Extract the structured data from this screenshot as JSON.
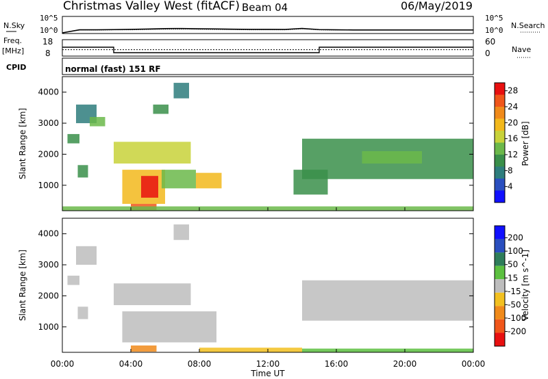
{
  "header": {
    "station": "Christmas Valley West (fitACF)",
    "beam": "Beam 04",
    "date": "06/May/2019"
  },
  "left_labels": {
    "nsky": "N.Sky",
    "freq_line1": "Freq.",
    "freq_line2": "[MHz]",
    "cpid": "CPID"
  },
  "right_labels": {
    "nsearch": "N.Search",
    "nave": "Nave"
  },
  "cpid_text": "normal (fast) 151 RF",
  "x_axis": {
    "label": "Time UT",
    "ticks": [
      "00:00",
      "04:00",
      "08:00",
      "12:00",
      "16:00",
      "20:00",
      "00:00"
    ]
  },
  "colors": {
    "power_scale": [
      "#1010ff",
      "#2a4fbf",
      "#2e7d7d",
      "#3a8f4a",
      "#6bb84a",
      "#c8d23a",
      "#f2b81c",
      "#f08a1a",
      "#f0561a",
      "#e81010"
    ],
    "velocity_scale": [
      "#1010ff",
      "#2a4fbf",
      "#2e7d5a",
      "#5cc040",
      "#bdbdbd",
      "#f2c020",
      "#f08a1a",
      "#f0561a",
      "#e81010"
    ]
  },
  "chart_data": [
    {
      "type": "line",
      "panel": "noise",
      "left_axis": {
        "label": "N.Sky",
        "ticks": [
          "10^5",
          "10^0"
        ]
      },
      "right_axis": {
        "label": "N.Search",
        "ticks": [
          "10^5",
          "10^0"
        ]
      },
      "x": [
        "00:00",
        "01:00",
        "02:00",
        "03:00",
        "04:00",
        "05:00",
        "06:00",
        "07:00",
        "08:00",
        "09:00",
        "10:00",
        "11:00",
        "12:00",
        "13:00",
        "14:00",
        "15:00",
        "16:00",
        "17:00",
        "18:00",
        "19:00",
        "20:00",
        "21:00",
        "22:00",
        "23:00",
        "24:00"
      ],
      "series": [
        {
          "name": "N.Sky",
          "values": [
            1,
            10,
            10,
            12,
            14,
            18,
            25,
            28,
            22,
            20,
            16,
            14,
            14,
            13,
            30,
            12,
            10,
            9,
            9,
            9,
            9,
            9,
            9,
            9,
            9
          ]
        },
        {
          "name": "N.Search",
          "values": [
            1,
            8,
            8,
            9,
            10,
            12,
            15,
            16,
            14,
            12,
            11,
            10,
            10,
            10,
            18,
            9,
            8,
            8,
            8,
            8,
            8,
            8,
            8,
            8,
            8
          ]
        }
      ]
    },
    {
      "type": "line",
      "panel": "frequency_nave",
      "left_axis": {
        "label": "Freq. [MHz]",
        "ticks": [
          "18",
          "8"
        ]
      },
      "right_axis": {
        "label": "Nave",
        "ticks": [
          "60",
          "0"
        ]
      },
      "x": [
        "00:00",
        "03:00",
        "03:00",
        "15:00",
        "15:00",
        "24:00"
      ],
      "series": [
        {
          "name": "Freq.",
          "values": [
            14.5,
            14.5,
            10.5,
            10.5,
            14.5,
            14.5
          ]
        },
        {
          "name": "Nave",
          "values": [
            28,
            28,
            28,
            28,
            28,
            28
          ]
        }
      ]
    },
    {
      "type": "heatmap",
      "panel": "power",
      "xlabel": "Time UT",
      "ylabel": "Slant Range [km]",
      "x_range_hours": [
        0,
        24
      ],
      "ylim": [
        180,
        4500
      ],
      "y_ticks": [
        1000,
        2000,
        3000,
        4000
      ],
      "colorbar": {
        "label": "Power [dB]",
        "ticks": [
          4,
          8,
          12,
          16,
          20,
          24,
          28
        ],
        "range": [
          0,
          30
        ]
      },
      "regions": [
        {
          "t0": 0.3,
          "t1": 1.0,
          "r0": 2350,
          "r1": 2650,
          "v": 11
        },
        {
          "t0": 0.8,
          "t1": 2.0,
          "r0": 3000,
          "r1": 3600,
          "v": 7
        },
        {
          "t0": 1.6,
          "t1": 2.5,
          "r0": 2900,
          "r1": 3200,
          "v": 14
        },
        {
          "t0": 0.9,
          "t1": 1.5,
          "r0": 1250,
          "r1": 1650,
          "v": 10
        },
        {
          "t0": 3.0,
          "t1": 7.5,
          "r0": 1700,
          "r1": 2400,
          "v": 16
        },
        {
          "t0": 3.5,
          "t1": 6.0,
          "r0": 400,
          "r1": 1500,
          "v": 20
        },
        {
          "t0": 4.6,
          "t1": 5.6,
          "r0": 600,
          "r1": 1300,
          "v": 28
        },
        {
          "t0": 4.0,
          "t1": 5.5,
          "r0": 200,
          "r1": 400,
          "v": 26
        },
        {
          "t0": 5.8,
          "t1": 7.8,
          "r0": 900,
          "r1": 1500,
          "v": 13
        },
        {
          "t0": 7.8,
          "t1": 9.3,
          "r0": 900,
          "r1": 1400,
          "v": 18
        },
        {
          "t0": 5.3,
          "t1": 6.2,
          "r0": 3300,
          "r1": 3600,
          "v": 10
        },
        {
          "t0": 6.5,
          "t1": 7.4,
          "r0": 3800,
          "r1": 4300,
          "v": 8
        },
        {
          "t0": 13.5,
          "t1": 15.5,
          "r0": 700,
          "r1": 1500,
          "v": 11
        },
        {
          "t0": 14.0,
          "t1": 24.0,
          "r0": 1200,
          "r1": 2500,
          "v": 9
        },
        {
          "t0": 17.5,
          "t1": 21.0,
          "r0": 1700,
          "r1": 2100,
          "v": 14
        },
        {
          "t0": 0.0,
          "t1": 24.0,
          "r0": 180,
          "r1": 320,
          "v": 12
        }
      ]
    },
    {
      "type": "heatmap",
      "panel": "velocity",
      "xlabel": "Time UT",
      "ylabel": "Slant Range [km]",
      "x_range_hours": [
        0,
        24
      ],
      "ylim": [
        180,
        4500
      ],
      "y_ticks": [
        1000,
        2000,
        3000,
        4000
      ],
      "colorbar": {
        "label": "Velocity [m s^-1]",
        "ticks": [
          200,
          100,
          50,
          15,
          -15,
          -50,
          -100,
          -200
        ]
      },
      "regions": [
        {
          "t0": 0.3,
          "t1": 1.0,
          "r0": 2350,
          "r1": 2650,
          "v": 0
        },
        {
          "t0": 0.8,
          "t1": 2.0,
          "r0": 3000,
          "r1": 3600,
          "v": 0
        },
        {
          "t0": 0.9,
          "t1": 1.5,
          "r0": 1250,
          "r1": 1650,
          "v": 0
        },
        {
          "t0": 3.0,
          "t1": 7.5,
          "r0": 1700,
          "r1": 2400,
          "v": 0
        },
        {
          "t0": 3.5,
          "t1": 9.0,
          "r0": 500,
          "r1": 1500,
          "v": 5
        },
        {
          "t0": 4.0,
          "t1": 5.5,
          "r0": 200,
          "r1": 400,
          "v": -60
        },
        {
          "t0": 6.5,
          "t1": 7.4,
          "r0": 3800,
          "r1": 4300,
          "v": 0
        },
        {
          "t0": 14.0,
          "t1": 24.0,
          "r0": 1200,
          "r1": 2500,
          "v": 0
        },
        {
          "t0": 8.0,
          "t1": 14.0,
          "r0": 180,
          "r1": 330,
          "v": -20
        },
        {
          "t0": 14.0,
          "t1": 24.0,
          "r0": 180,
          "r1": 300,
          "v": 30
        }
      ]
    }
  ]
}
